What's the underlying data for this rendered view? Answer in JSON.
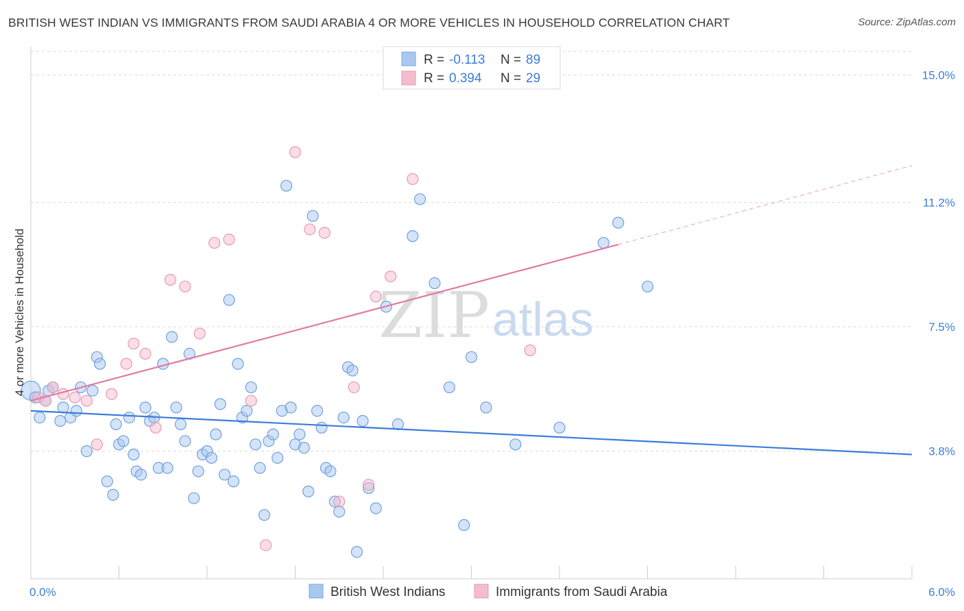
{
  "title": "BRITISH WEST INDIAN VS IMMIGRANTS FROM SAUDI ARABIA 4 OR MORE VEHICLES IN HOUSEHOLD CORRELATION CHART",
  "source": "Source: ZipAtlas.com",
  "watermark": {
    "zip": "ZIP",
    "atlas": "atlas"
  },
  "colors": {
    "blue": "#3b7dd8",
    "blue_fill": "#a9c8ef",
    "pink": "#e07aa0",
    "pink_fill": "#f5bccf",
    "grid": "#d9d9d9",
    "tick_text": "#3b7dd8"
  },
  "legend": {
    "r_label": "R =",
    "n_label": "N =",
    "rows": [
      {
        "r": "-0.113",
        "n": "89"
      },
      {
        "r": "0.394",
        "n": "29"
      }
    ]
  },
  "chart_data": {
    "type": "scatter",
    "title": "BRITISH WEST INDIAN VS IMMIGRANTS FROM SAUDI ARABIA 4 OR MORE VEHICLES IN HOUSEHOLD CORRELATION CHART",
    "xlabel": "",
    "ylabel": "4 or more Vehicles in Household",
    "xlim": [
      0,
      6
    ],
    "ylim": [
      0,
      15.7
    ],
    "x_ticks": [
      {
        "v": 0,
        "label": "0.0%"
      },
      {
        "v": 6,
        "label": "6.0%"
      }
    ],
    "y_ticks": [
      {
        "v": 3.8,
        "label": "3.8%"
      },
      {
        "v": 7.5,
        "label": "7.5%"
      },
      {
        "v": 11.2,
        "label": "11.2%"
      },
      {
        "v": 15.0,
        "label": "15.0%"
      }
    ],
    "grid": true,
    "legend_position": "top-center",
    "series": [
      {
        "name": "British West Indians",
        "color": "#3b7dd8",
        "r": -0.113,
        "n": 89,
        "trend": {
          "x0": 0,
          "y0": 5.0,
          "x1": 6,
          "y1": 3.7
        },
        "points": [
          [
            0.0,
            5.6
          ],
          [
            0.03,
            5.4
          ],
          [
            0.06,
            4.8
          ],
          [
            0.1,
            5.3
          ],
          [
            0.12,
            5.6
          ],
          [
            0.15,
            5.7
          ],
          [
            0.2,
            4.7
          ],
          [
            0.22,
            5.1
          ],
          [
            0.27,
            4.8
          ],
          [
            0.31,
            5.0
          ],
          [
            0.34,
            5.7
          ],
          [
            0.38,
            3.8
          ],
          [
            0.42,
            5.6
          ],
          [
            0.45,
            6.6
          ],
          [
            0.47,
            6.4
          ],
          [
            0.52,
            2.9
          ],
          [
            0.56,
            2.5
          ],
          [
            0.58,
            4.6
          ],
          [
            0.6,
            4.0
          ],
          [
            0.63,
            4.1
          ],
          [
            0.67,
            4.8
          ],
          [
            0.7,
            3.7
          ],
          [
            0.72,
            3.2
          ],
          [
            0.75,
            3.1
          ],
          [
            0.78,
            5.1
          ],
          [
            0.81,
            4.7
          ],
          [
            0.84,
            4.8
          ],
          [
            0.87,
            3.3
          ],
          [
            0.9,
            6.4
          ],
          [
            0.93,
            3.3
          ],
          [
            0.96,
            7.2
          ],
          [
            0.99,
            5.1
          ],
          [
            1.02,
            4.6
          ],
          [
            1.05,
            4.1
          ],
          [
            1.08,
            6.7
          ],
          [
            1.11,
            2.4
          ],
          [
            1.14,
            3.2
          ],
          [
            1.17,
            3.7
          ],
          [
            1.2,
            3.8
          ],
          [
            1.23,
            3.6
          ],
          [
            1.26,
            4.3
          ],
          [
            1.29,
            5.2
          ],
          [
            1.32,
            3.1
          ],
          [
            1.35,
            8.3
          ],
          [
            1.38,
            2.9
          ],
          [
            1.41,
            6.4
          ],
          [
            1.44,
            4.8
          ],
          [
            1.47,
            5.0
          ],
          [
            1.5,
            5.7
          ],
          [
            1.53,
            4.0
          ],
          [
            1.56,
            3.3
          ],
          [
            1.59,
            1.9
          ],
          [
            1.62,
            4.1
          ],
          [
            1.65,
            4.3
          ],
          [
            1.68,
            3.6
          ],
          [
            1.71,
            5.0
          ],
          [
            1.74,
            11.7
          ],
          [
            1.77,
            5.1
          ],
          [
            1.8,
            4.0
          ],
          [
            1.83,
            4.3
          ],
          [
            1.86,
            3.9
          ],
          [
            1.89,
            2.6
          ],
          [
            1.92,
            10.8
          ],
          [
            1.95,
            5.0
          ],
          [
            1.98,
            4.5
          ],
          [
            2.01,
            3.3
          ],
          [
            2.04,
            3.2
          ],
          [
            2.07,
            2.3
          ],
          [
            2.1,
            2.0
          ],
          [
            2.13,
            4.8
          ],
          [
            2.16,
            6.3
          ],
          [
            2.19,
            6.2
          ],
          [
            2.22,
            0.8
          ],
          [
            2.26,
            4.7
          ],
          [
            2.3,
            2.7
          ],
          [
            2.35,
            2.1
          ],
          [
            2.42,
            8.1
          ],
          [
            2.5,
            4.6
          ],
          [
            2.6,
            10.2
          ],
          [
            2.65,
            11.3
          ],
          [
            2.75,
            8.8
          ],
          [
            2.85,
            5.7
          ],
          [
            2.95,
            1.6
          ],
          [
            3.0,
            6.6
          ],
          [
            3.1,
            5.1
          ],
          [
            3.3,
            4.0
          ],
          [
            3.6,
            4.5
          ],
          [
            3.9,
            10.0
          ],
          [
            4.0,
            10.6
          ],
          [
            4.2,
            8.7
          ]
        ]
      },
      {
        "name": "Immigrants from Saudi Arabia",
        "color": "#e07aa0",
        "r": 0.394,
        "n": 29,
        "trend": {
          "x0": 0,
          "y0": 5.3,
          "x1": 4.0,
          "y1": 9.95
        },
        "trend_extension": {
          "x0": 4.0,
          "y0": 9.95,
          "x1": 6,
          "y1": 12.3
        },
        "points": [
          [
            0.05,
            5.4
          ],
          [
            0.1,
            5.3
          ],
          [
            0.15,
            5.7
          ],
          [
            0.22,
            5.5
          ],
          [
            0.3,
            5.4
          ],
          [
            0.38,
            5.3
          ],
          [
            0.45,
            4.0
          ],
          [
            0.55,
            5.5
          ],
          [
            0.65,
            6.4
          ],
          [
            0.7,
            7.0
          ],
          [
            0.78,
            6.7
          ],
          [
            0.85,
            4.5
          ],
          [
            0.95,
            8.9
          ],
          [
            1.05,
            8.7
          ],
          [
            1.15,
            7.3
          ],
          [
            1.25,
            10.0
          ],
          [
            1.35,
            10.1
          ],
          [
            1.5,
            5.3
          ],
          [
            1.6,
            1.0
          ],
          [
            1.8,
            12.7
          ],
          [
            1.9,
            10.4
          ],
          [
            2.0,
            10.3
          ],
          [
            2.1,
            2.3
          ],
          [
            2.2,
            5.7
          ],
          [
            2.3,
            2.8
          ],
          [
            2.35,
            8.4
          ],
          [
            2.45,
            9.0
          ],
          [
            2.6,
            11.9
          ],
          [
            3.4,
            6.8
          ]
        ]
      }
    ]
  },
  "bottom_legend": [
    {
      "label": "British West Indians"
    },
    {
      "label": "Immigrants from Saudi Arabia"
    }
  ]
}
